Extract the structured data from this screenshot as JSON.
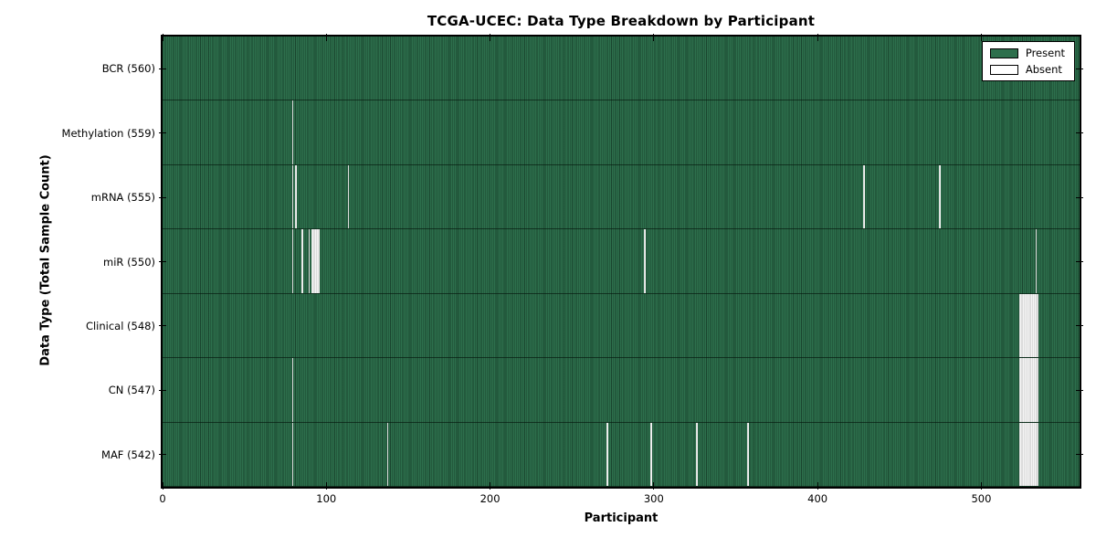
{
  "title": "TCGA-UCEC: Data Type Breakdown by Participant",
  "x_axis": {
    "label": "Participant",
    "tick_labels": [
      "0",
      "100",
      "200",
      "300",
      "400",
      "500"
    ]
  },
  "y_axis": {
    "label": "Data Type (Total Sample Count)"
  },
  "legend": {
    "items": [
      {
        "label": "Present",
        "state": "present"
      },
      {
        "label": "Absent",
        "state": "absent"
      }
    ]
  },
  "colors": {
    "present_green": "#2d6f4c",
    "present_stripe": "rgba(4,24,13,0.48)",
    "absent_white": "#f5f5f5",
    "edge_black": "#000000"
  },
  "chart_data": {
    "type": "heatmap",
    "title": "TCGA-UCEC: Data Type Breakdown by Participant",
    "xlabel": "Participant",
    "ylabel": "Data Type (Total Sample Count)",
    "x_ticks": [
      0,
      100,
      200,
      300,
      400,
      500
    ],
    "xlim": [
      0,
      560
    ],
    "n_participants": 560,
    "cell_states": [
      "Present",
      "Absent"
    ],
    "legend_entries": [
      "Present",
      "Absent"
    ],
    "rows": [
      {
        "label": "BCR (560)",
        "data_type": "BCR",
        "total_samples": 560,
        "absent_participants": []
      },
      {
        "label": "Methylation (559)",
        "data_type": "Methylation",
        "total_samples": 559,
        "absent_participants": [
          79
        ]
      },
      {
        "label": "mRNA (555)",
        "data_type": "mRNA",
        "total_samples": 555,
        "absent_participants": [
          79,
          81,
          113,
          428,
          474
        ]
      },
      {
        "label": "miR (550)",
        "data_type": "miR",
        "total_samples": 550,
        "absent_participants": [
          79,
          85,
          89,
          91,
          92,
          93,
          94,
          95,
          294,
          533
        ]
      },
      {
        "label": "Clinical (548)",
        "data_type": "Clinical",
        "total_samples": 548,
        "absent_participants": [
          523,
          524,
          525,
          526,
          527,
          528,
          529,
          530,
          531,
          532,
          533,
          534
        ]
      },
      {
        "label": "CN (547)",
        "data_type": "CN",
        "total_samples": 547,
        "absent_participants": [
          79,
          523,
          524,
          525,
          526,
          527,
          528,
          529,
          530,
          531,
          532,
          533,
          534
        ]
      },
      {
        "label": "MAF (542)",
        "data_type": "MAF",
        "total_samples": 542,
        "absent_participants": [
          79,
          137,
          271,
          298,
          326,
          357,
          523,
          524,
          525,
          526,
          527,
          528,
          529,
          530,
          531,
          532,
          533,
          534
        ]
      }
    ]
  }
}
